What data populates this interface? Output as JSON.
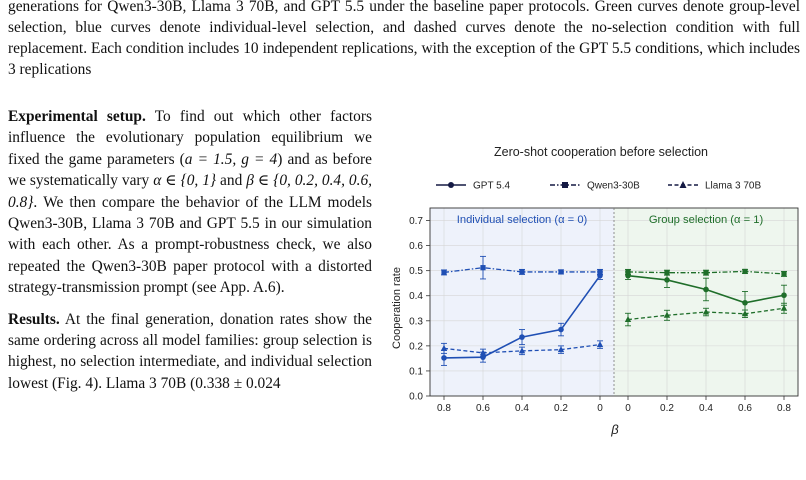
{
  "caption": {
    "text": "generations for Qwen3-30B, Llama 3 70B, and GPT 5.5 under the baseline paper protocols. Green curves denote group-level selection, blue curves denote individual-level selection, and dashed curves denote the no-selection condition with full replacement. Each condition includes 10 independent replications, with the exception of the GPT 5.5 conditions, which includes 3 replications"
  },
  "setup": {
    "heading": "Experimental setup.",
    "text_1": " To find out which other factors influence the evolutionary population equilibrium we fixed the game parameters (",
    "param_a": "a = 1.5, g = 4",
    "text_2": ") and as before we systematically vary ",
    "param_alpha": "α ∈ {0, 1}",
    "text_3": " and ",
    "param_beta": "β ∈ {0, 0.2, 0.4, 0.6, 0.8}",
    "text_4": ". We then compare the behavior of the LLM models Qwen3-30B, Llama 3 70B and GPT 5.5 in our simulation with each other. As a prompt-robustness check, we also repeated the Qwen3-30B paper protocol with a distorted strategy-transmission prompt (see App. A.6)."
  },
  "results": {
    "heading": "Results.",
    "text": " At the final generation, donation rates show the same ordering across all model families: group selection is highest, no selection intermediate, and individual selection lowest (Fig. 4). Llama 3 70B (0.338 ± 0.024"
  },
  "chart_data": {
    "type": "line",
    "title": "Zero-shot cooperation before selection",
    "xlabel": "β",
    "ylabel": "Cooperation rate",
    "ylim": [
      0,
      0.75
    ],
    "yticks": [
      "0.0",
      "0.1",
      "0.2",
      "0.3",
      "0.4",
      "0.5",
      "0.6",
      "0.7"
    ],
    "legend_placement": "top",
    "grid": true,
    "panels": [
      {
        "label": "Individual selection (α = 0)",
        "color": "#1f4fb4",
        "bg": "#eef2fb",
        "x": [
          0.8,
          0.6,
          0.4,
          0.2,
          0
        ],
        "x_ticks": [
          "0.8",
          "0.6",
          "0.4",
          "0.2",
          "0"
        ],
        "series": [
          {
            "name": "GPT 5.4",
            "marker": "circle",
            "dash": "solid",
            "values": [
              0.152,
              0.155,
              0.235,
              0.265,
              0.48
            ],
            "err": [
              0.03,
              0.02,
              0.03,
              0.025,
              0.015
            ]
          },
          {
            "name": "Qwen3-30B",
            "marker": "square",
            "dash": "dashdot",
            "values": [
              0.493,
              0.512,
              0.495,
              0.495,
              0.495
            ],
            "err": [
              0.01,
              0.045,
              0.01,
              0.008,
              0.01
            ]
          },
          {
            "name": "Llama 3 70B",
            "marker": "triangle",
            "dash": "dashed",
            "values": [
              0.19,
              0.172,
              0.18,
              0.185,
              0.205
            ],
            "err": [
              0.02,
              0.015,
              0.015,
              0.015,
              0.015
            ]
          }
        ]
      },
      {
        "label": "Group selection (α = 1)",
        "color": "#1f6e2a",
        "bg": "#eef6ee",
        "x": [
          0,
          0.2,
          0.4,
          0.6,
          0.8
        ],
        "x_ticks": [
          "0",
          "0.2",
          "0.4",
          "0.6",
          "0.8"
        ],
        "series": [
          {
            "name": "GPT 5.4",
            "marker": "circle",
            "dash": "solid",
            "values": [
              0.48,
              0.463,
              0.425,
              0.372,
              0.402
            ],
            "err": [
              0.015,
              0.03,
              0.045,
              0.045,
              0.04
            ]
          },
          {
            "name": "Qwen3-30B",
            "marker": "square",
            "dash": "dashdot",
            "values": [
              0.495,
              0.492,
              0.492,
              0.497,
              0.487
            ],
            "err": [
              0.01,
              0.01,
              0.01,
              0.008,
              0.01
            ]
          },
          {
            "name": "Llama 3 70B",
            "marker": "triangle",
            "dash": "dashed",
            "values": [
              0.305,
              0.322,
              0.335,
              0.328,
              0.35
            ],
            "err": [
              0.025,
              0.02,
              0.015,
              0.015,
              0.02
            ]
          }
        ]
      }
    ]
  }
}
